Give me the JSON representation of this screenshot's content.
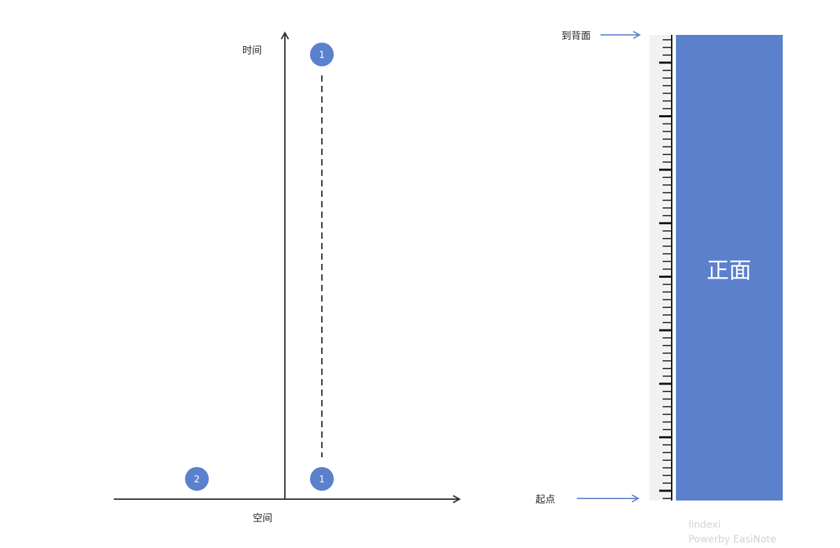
{
  "spacetime": {
    "time_label": "时间",
    "space_label": "空间",
    "event_top_label": "1",
    "event_bottom_label": "1",
    "event_left_label": "2"
  },
  "ruler": {
    "to_back_label": "到背面",
    "start_label": "起点",
    "front_label": "正面"
  },
  "watermark": {
    "line1": "lindexi",
    "line2": "Powerby EasiNote"
  },
  "colors": {
    "accent": "#5b80cc",
    "axis": "#333333",
    "ruler_bg": "#f2f2f2"
  }
}
